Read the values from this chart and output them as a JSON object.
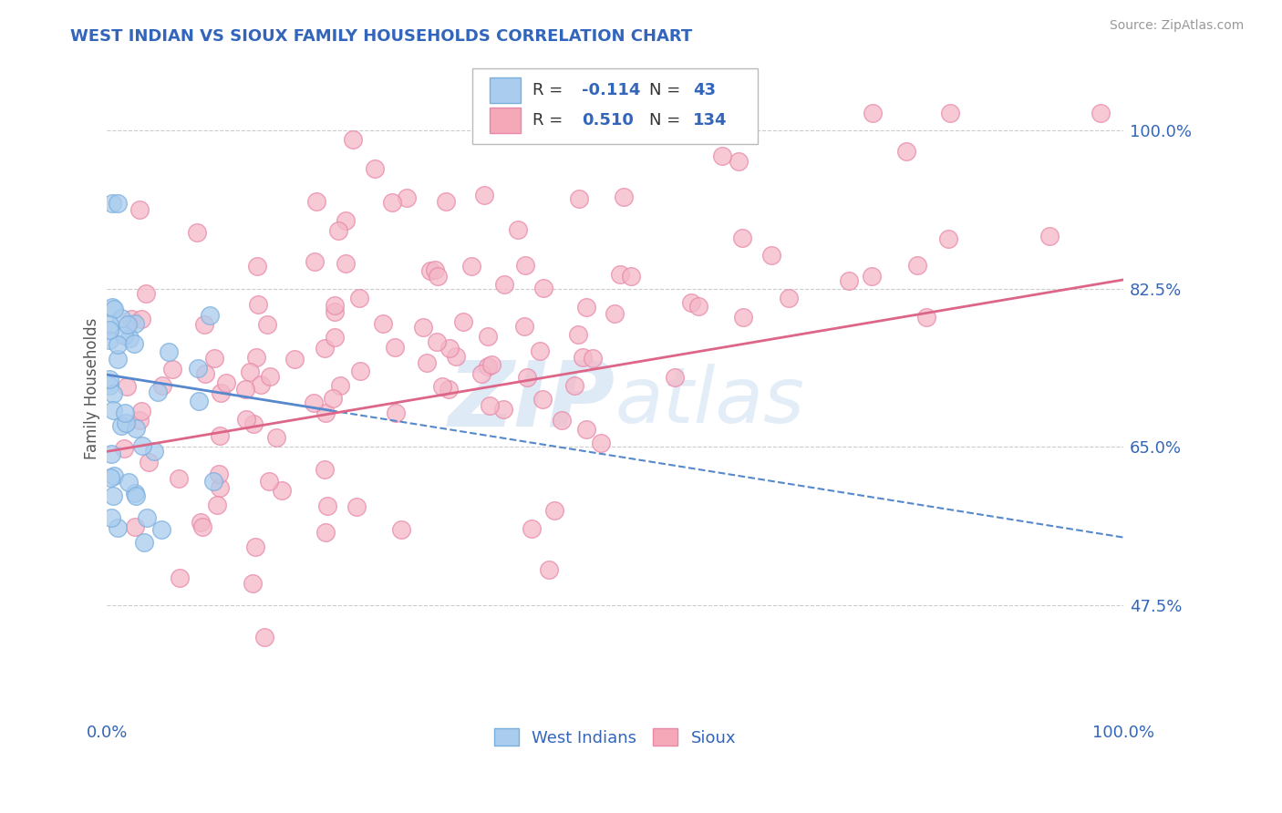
{
  "title": "WEST INDIAN VS SIOUX FAMILY HOUSEHOLDS CORRELATION CHART",
  "source": "Source: ZipAtlas.com",
  "ylabel": "Family Households",
  "y_tick_labels": [
    "47.5%",
    "65.0%",
    "82.5%",
    "100.0%"
  ],
  "y_tick_values": [
    0.475,
    0.65,
    0.825,
    1.0
  ],
  "xlim": [
    0.0,
    1.0
  ],
  "ylim": [
    0.35,
    1.08
  ],
  "title_color": "#3366bb",
  "title_fontsize": 13,
  "tick_label_color": "#3366bb",
  "ylabel_color": "#555555",
  "legend_color1": "#aaccee",
  "legend_color2": "#f4a8b8",
  "dot_color1": "#aaccee",
  "dot_color2": "#f4b8c8",
  "dot_edge1": "#7aaedd",
  "dot_edge2": "#e888a8",
  "trend_color1": "#5588cc",
  "trend_color2": "#dd6688",
  "background_color": "#ffffff",
  "grid_color": "#cccccc",
  "watermark_color": "#c8ddf0",
  "source_color": "#999999"
}
